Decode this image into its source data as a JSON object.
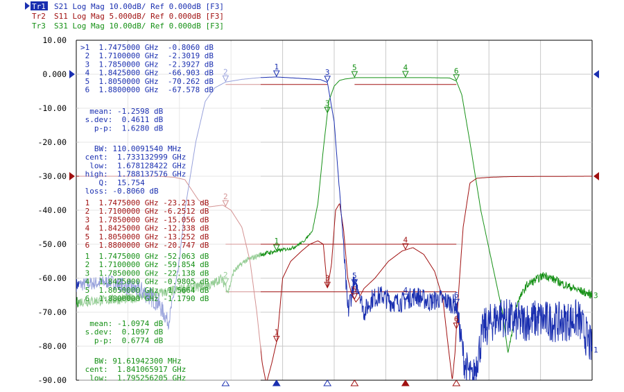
{
  "traces": [
    {
      "badge": "Tr1",
      "text": "S21 Log Mag 10.00dB/ Ref 0.000dB [F3]",
      "color": "#1a2fb0"
    },
    {
      "badge": "Tr2",
      "text": "S11 Log Mag 5.000dB/ Ref 0.000dB [F3]",
      "color": "#a01010"
    },
    {
      "badge": "Tr3",
      "text": "S31 Log Mag 10.00dB/ Ref 0.000dB [F3]",
      "color": "#159015"
    }
  ],
  "readouts": {
    "blue1": [
      ">1  1.7475000 GHz  -0.8060 dB",
      " 2  1.7100000 GHz  -2.3019 dB",
      " 3  1.7850000 GHz  -2.3927 dB",
      " 4  1.8425000 GHz  -66.903 dB",
      " 5  1.8050000 GHz  -70.262 dB",
      " 6  1.8800000 GHz  -67.578 dB"
    ],
    "blue2": [
      "  mean: -1.2598 dB",
      " s.dev:  0.4611 dB",
      "   p-p:  1.6280 dB"
    ],
    "blue3": [
      "   BW: 110.0091540 MHz",
      " cent:  1.733132999 GHz",
      "  low:  1.678128422 GHz",
      " high:  1.788137576 GHz",
      "    Q:  15.754",
      " loss: -0.8060 dB"
    ],
    "red1": [
      " 1  1.7475000 GHz -23.213 dB",
      " 2  1.7100000 GHz -6.2512 dB",
      " 3  1.7850000 GHz -15.056 dB",
      " 4  1.8425000 GHz -12.338 dB",
      " 5  1.8050000 GHz -13.252 dB",
      " 6  1.8800000 GHz -20.747 dB"
    ],
    "green1": [
      " 1  1.7475000 GHz -52.063 dB",
      " 2  1.7100000 GHz -59.854 dB",
      " 3  1.7850000 GHz -22.138 dB",
      " 4  1.8425000 GHz -0.9805 dB",
      " 5  1.8050000 GHz -1.5664 dB",
      " 6  1.8800000 GHz -1.1790 dB"
    ],
    "green2": [
      "  mean: -1.0974 dB",
      " s.dev:  0.1097 dB",
      "   p-p:  0.6774 dB"
    ],
    "green3": [
      "   BW: 91.61942300 MHz",
      " cent:  1.841065917 GHz",
      "  low:  1.795256205 GHz"
    ]
  },
  "chart_data": {
    "type": "line",
    "title": "",
    "xlabel": "",
    "ylabel": "",
    "ylim": [
      -90,
      10
    ],
    "yticks": [
      "10.00",
      "0.000",
      "-10.00",
      "-20.00",
      "-30.00",
      "-40.00",
      "-50.00",
      "-60.00",
      "-70.00",
      "-80.00",
      "-90.00"
    ],
    "xlim_ghz": [
      1.6,
      1.98
    ],
    "x_divisions": 10,
    "grid": true,
    "series": [
      {
        "color": "#1a2fb0",
        "x": [
          1.6,
          1.625,
          1.65,
          1.66,
          1.668,
          1.675,
          1.68,
          1.688,
          1.695,
          1.702,
          1.71,
          1.722,
          1.735,
          1.747,
          1.76,
          1.772,
          1.78,
          1.785,
          1.79,
          1.796,
          1.8,
          1.804,
          1.808,
          1.812,
          1.818,
          1.825,
          1.832,
          1.84,
          1.85,
          1.86,
          1.868,
          1.874,
          1.88,
          1.886,
          1.892,
          1.9,
          1.912,
          1.925,
          1.94,
          1.955,
          1.97,
          1.98
        ],
        "y": [
          -62,
          -61,
          -64,
          -67,
          -73,
          -58,
          -40,
          -20,
          -8,
          -4,
          -2.3,
          -1.5,
          -1.0,
          -0.8,
          -1.1,
          -1.4,
          -1.6,
          -2.4,
          -14,
          -45,
          -70,
          -62,
          -63,
          -70,
          -66,
          -65,
          -67,
          -67,
          -65,
          -67,
          -66,
          -67,
          -68,
          -85,
          -90,
          -75,
          -71,
          -73,
          -72,
          -73,
          -72,
          -81
        ],
        "noise": [
          2,
          2,
          3,
          3,
          2,
          1,
          0,
          0,
          0,
          0,
          0,
          0,
          0,
          0,
          0,
          0,
          0,
          0,
          0,
          1,
          4,
          3,
          2,
          3,
          3,
          3,
          3,
          3,
          3,
          3,
          3,
          3,
          3,
          5,
          5,
          6,
          6,
          6,
          6,
          6,
          6,
          6
        ]
      },
      {
        "color": "#a01010",
        "x": [
          1.6,
          1.66,
          1.672,
          1.68,
          1.69,
          1.698,
          1.708,
          1.714,
          1.722,
          1.728,
          1.733,
          1.737,
          1.74,
          1.744,
          1.748,
          1.752,
          1.758,
          1.766,
          1.772,
          1.778,
          1.782,
          1.785,
          1.788,
          1.791,
          1.794,
          1.797,
          1.8,
          1.803,
          1.806,
          1.808,
          1.812,
          1.82,
          1.83,
          1.84,
          1.848,
          1.856,
          1.864,
          1.87,
          1.874,
          1.877,
          1.879,
          1.88,
          1.882,
          1.885,
          1.89,
          1.895,
          1.905,
          1.92,
          1.98
        ],
        "y": [
          -30,
          -30,
          -30.3,
          -31,
          -37,
          -39,
          -38.5,
          -40,
          -45,
          -55,
          -70,
          -85,
          -91,
          -85,
          -78,
          -60,
          -55,
          -52,
          -50,
          -49,
          -50,
          -63,
          -56,
          -40,
          -38,
          -46,
          -60,
          -65,
          -67,
          -66,
          -63,
          -60,
          -55,
          -52,
          -51,
          -53,
          -58,
          -66,
          -80,
          -90,
          -82,
          -75,
          -62,
          -45,
          -32,
          -30.6,
          -30.3,
          -30.1,
          -30
        ]
      },
      {
        "color": "#159015",
        "x": [
          1.6,
          1.64,
          1.68,
          1.7,
          1.706,
          1.71,
          1.712,
          1.716,
          1.724,
          1.736,
          1.748,
          1.76,
          1.768,
          1.774,
          1.778,
          1.782,
          1.786,
          1.79,
          1.794,
          1.798,
          1.802,
          1.806,
          1.815,
          1.83,
          1.845,
          1.86,
          1.875,
          1.88,
          1.884,
          1.89,
          1.898,
          1.906,
          1.914,
          1.918,
          1.921,
          1.925,
          1.932,
          1.945,
          1.96,
          1.98
        ],
        "y": [
          -67,
          -66,
          -63,
          -62,
          -60,
          -62,
          -64,
          -58,
          -55,
          -53,
          -52,
          -51,
          -49,
          -46,
          -38,
          -22,
          -8,
          -3.5,
          -1.8,
          -1.4,
          -1.2,
          -1.0,
          -1.0,
          -1.0,
          -1.0,
          -1.0,
          -1.1,
          -2,
          -6,
          -20,
          -40,
          -55,
          -70,
          -82,
          -76,
          -67,
          -62,
          -59,
          -62,
          -65
        ],
        "noise": [
          1.5,
          1.5,
          1.5,
          1.5,
          1.5,
          1.5,
          1,
          0.8,
          0.8,
          0.8,
          0.5,
          0.5,
          0.3,
          0.2,
          0,
          0,
          0,
          0,
          0,
          0,
          0,
          0,
          0,
          0,
          0,
          0,
          0,
          0,
          0,
          0,
          0,
          0,
          0,
          0,
          1,
          1,
          1.2,
          1.2,
          1.2,
          1.2
        ]
      }
    ],
    "markers": [
      {
        "series": 0,
        "label": "1",
        "freq": 1.7475,
        "value": -0.806
      },
      {
        "series": 0,
        "label": "2",
        "freq": 1.71,
        "value": -2.3019
      },
      {
        "series": 0,
        "label": "3",
        "freq": 1.785,
        "value": -2.3927
      },
      {
        "series": 0,
        "label": "4",
        "freq": 1.8425,
        "value": -66.903
      },
      {
        "series": 0,
        "label": "5",
        "freq": 1.805,
        "value": -70.262
      },
      {
        "series": 0,
        "label": "6",
        "freq": 1.88,
        "value": -67.578
      },
      {
        "series": 1,
        "label": "1",
        "freq": 1.7475,
        "value": -23.213
      },
      {
        "series": 1,
        "label": "2",
        "freq": 1.71,
        "value": -6.2512
      },
      {
        "series": 1,
        "label": "3",
        "freq": 1.785,
        "value": -15.056
      },
      {
        "series": 1,
        "label": "4",
        "freq": 1.8425,
        "value": -12.338
      },
      {
        "series": 1,
        "label": "5",
        "freq": 1.805,
        "value": -13.252
      },
      {
        "series": 1,
        "label": "6",
        "freq": 1.88,
        "value": -20.747
      },
      {
        "series": 2,
        "label": "1",
        "freq": 1.7475,
        "value": -52.063
      },
      {
        "series": 2,
        "label": "2",
        "freq": 1.71,
        "value": -59.854
      },
      {
        "series": 2,
        "label": "3",
        "freq": 1.785,
        "value": -22.138
      },
      {
        "series": 2,
        "label": "4",
        "freq": 1.8425,
        "value": -0.9805
      },
      {
        "series": 2,
        "label": "5",
        "freq": 1.805,
        "value": -1.5664
      },
      {
        "series": 2,
        "label": "6",
        "freq": 1.88,
        "value": -1.179
      }
    ],
    "end_labels": [
      "1",
      "3"
    ]
  }
}
